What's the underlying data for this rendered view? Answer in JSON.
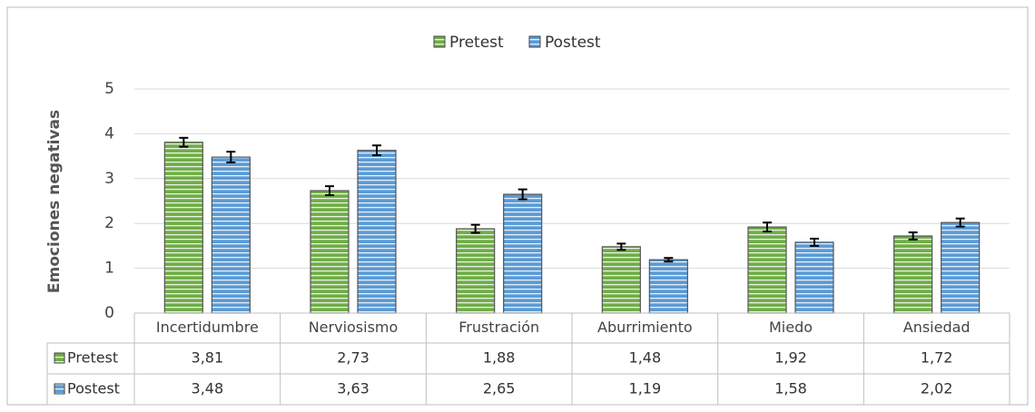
{
  "chart_data": {
    "type": "bar",
    "y_label": "Emociones negativas",
    "categories": [
      "Incertidumbre",
      "Nerviosismo",
      "Frustración",
      "Aburrimiento",
      "Miedo",
      "Ansiedad"
    ],
    "series": [
      {
        "name": "Pretest",
        "color": "#70ad47",
        "values": [
          3.81,
          2.73,
          1.88,
          1.48,
          1.92,
          1.72
        ],
        "value_labels": [
          "3,81",
          "2,73",
          "1,88",
          "1,48",
          "1,92",
          "1,72"
        ],
        "errors": [
          0.1,
          0.1,
          0.09,
          0.07,
          0.1,
          0.08
        ]
      },
      {
        "name": "Postest",
        "color": "#5b9bd5",
        "values": [
          3.48,
          3.63,
          2.65,
          1.19,
          1.58,
          2.02
        ],
        "value_labels": [
          "3,48",
          "3,63",
          "2,65",
          "1,19",
          "1,58",
          "2,02"
        ],
        "errors": [
          0.12,
          0.11,
          0.11,
          0.04,
          0.08,
          0.09
        ]
      }
    ],
    "ylim": [
      0,
      5
    ],
    "yticks": [
      0,
      1,
      2,
      3,
      4,
      5
    ],
    "grid": true,
    "legend": "top"
  }
}
